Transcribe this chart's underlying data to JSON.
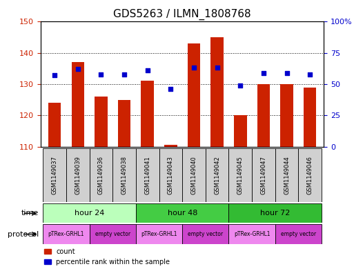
{
  "title": "GDS5263 / ILMN_1808768",
  "samples": [
    "GSM1149037",
    "GSM1149039",
    "GSM1149036",
    "GSM1149038",
    "GSM1149041",
    "GSM1149043",
    "GSM1149040",
    "GSM1149042",
    "GSM1149045",
    "GSM1149047",
    "GSM1149044",
    "GSM1149046"
  ],
  "count_values": [
    124,
    137,
    126,
    125,
    131,
    110.5,
    143,
    145,
    120,
    130,
    130,
    129
  ],
  "percentile_values": [
    57,
    62,
    58,
    58,
    61,
    46,
    63,
    63,
    49,
    59,
    59,
    58
  ],
  "ylim_left": [
    110,
    150
  ],
  "ylim_right": [
    0,
    100
  ],
  "yticks_left": [
    110,
    120,
    130,
    140,
    150
  ],
  "yticks_right": [
    0,
    25,
    50,
    75,
    100
  ],
  "bar_color": "#cc2200",
  "dot_color": "#0000cc",
  "time_colors": [
    "#bbffbb",
    "#44cc44",
    "#33bb33"
  ],
  "prot_colors": [
    "#ee88ee",
    "#cc44cc"
  ],
  "gsm_color": "#d0d0d0",
  "title_fontsize": 11,
  "tick_fontsize": 8,
  "label_fontsize": 8,
  "gsm_fontsize": 6,
  "bar_width": 0.55,
  "time_groups": [
    {
      "label": "hour 24",
      "start": 0,
      "end": 4
    },
    {
      "label": "hour 48",
      "start": 4,
      "end": 8
    },
    {
      "label": "hour 72",
      "start": 8,
      "end": 12
    }
  ],
  "protocol_groups": [
    {
      "label": "pTRex-GRHL1",
      "start": 0,
      "end": 2
    },
    {
      "label": "empty vector",
      "start": 2,
      "end": 4
    },
    {
      "label": "pTRex-GRHL1",
      "start": 4,
      "end": 6
    },
    {
      "label": "empty vector",
      "start": 6,
      "end": 8
    },
    {
      "label": "pTRex-GRHL1",
      "start": 8,
      "end": 10
    },
    {
      "label": "empty vector",
      "start": 10,
      "end": 12
    }
  ]
}
